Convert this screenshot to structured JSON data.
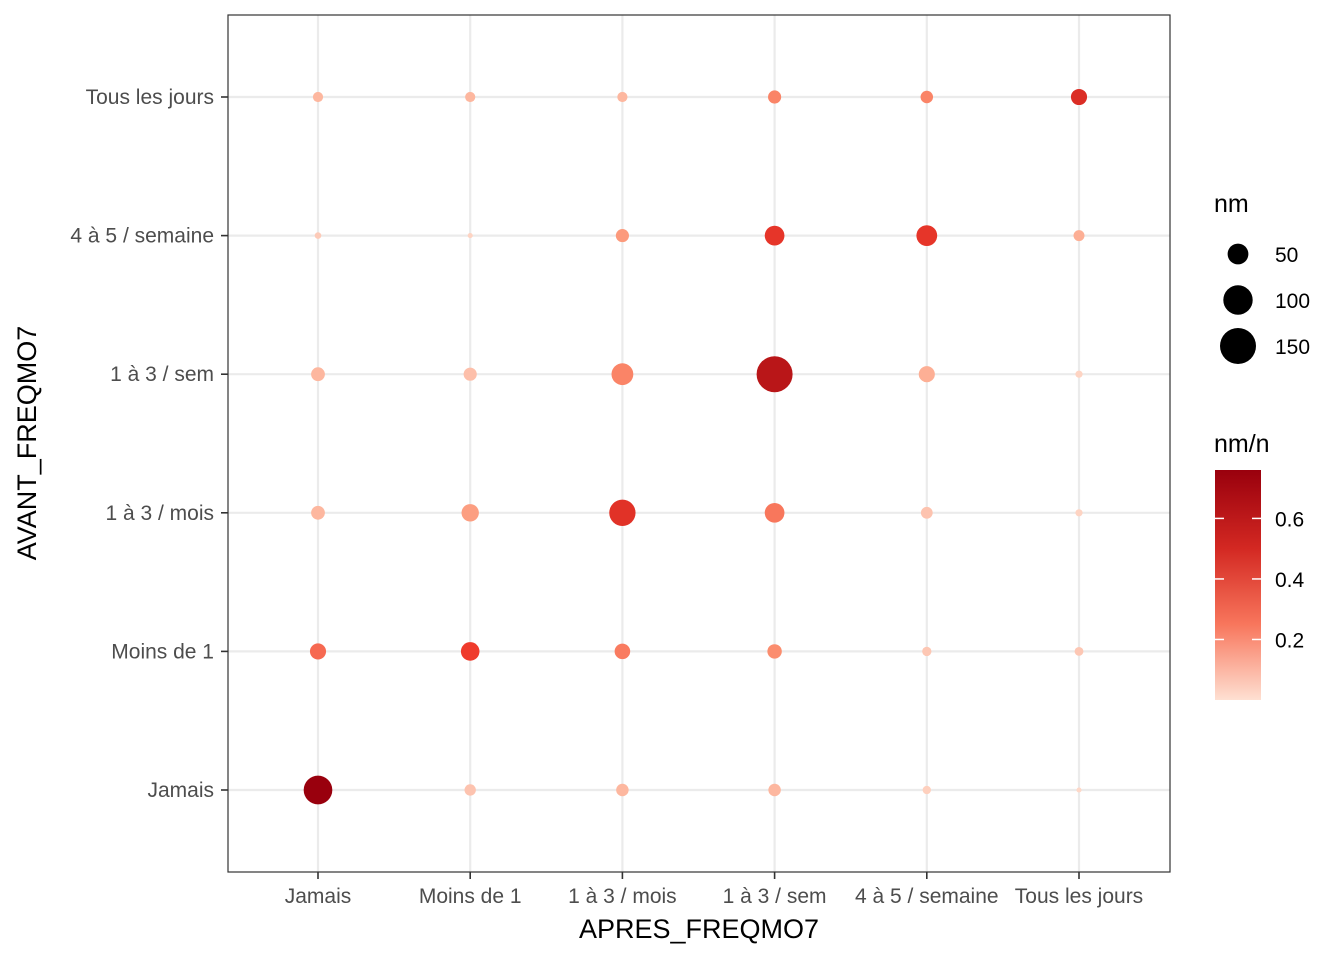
{
  "chart_data": {
    "type": "scatter",
    "xlabel": "APRES_FREQMO7",
    "ylabel": "AVANT_FREQMO7",
    "x_categories": [
      "Jamais",
      "Moins de 1",
      "1 à 3 / mois",
      "1 à 3 / sem",
      "4 à 5 / semaine",
      "Tous les jours"
    ],
    "y_categories": [
      "Jamais",
      "Moins de 1",
      "1 à 3 / mois",
      "1 à 3 / sem",
      "4 à 5 / semaine",
      "Tous les jours"
    ],
    "grid": true,
    "legend_position": "right",
    "size_legend": {
      "title": "nm",
      "breaks": [
        50,
        100,
        150
      ],
      "labels": [
        "50",
        "100",
        "150"
      ]
    },
    "color_legend": {
      "title": "nm/n",
      "breaks": [
        0.2,
        0.4,
        0.6
      ],
      "labels": [
        "0.2",
        "0.4",
        "0.6"
      ],
      "range": [
        0,
        0.76
      ],
      "low_color": "#fee0d2",
      "high_color": "#99000d"
    },
    "points": [
      {
        "x": "Jamais",
        "y": "Tous les jours",
        "nm": 12,
        "ratio": 0.1
      },
      {
        "x": "Moins de 1",
        "y": "Tous les jours",
        "nm": 12,
        "ratio": 0.1
      },
      {
        "x": "1 à 3 / mois",
        "y": "Tous les jours",
        "nm": 12,
        "ratio": 0.1
      },
      {
        "x": "1 à 3 / sem",
        "y": "Tous les jours",
        "nm": 20,
        "ratio": 0.22
      },
      {
        "x": "4 à 5 / semaine",
        "y": "Tous les jours",
        "nm": 18,
        "ratio": 0.22
      },
      {
        "x": "Tous les jours",
        "y": "Tous les jours",
        "nm": 30,
        "ratio": 0.47
      },
      {
        "x": "Jamais",
        "y": "4 à 5 / semaine",
        "nm": 5,
        "ratio": 0.05
      },
      {
        "x": "Moins de 1",
        "y": "4 à 5 / semaine",
        "nm": 3,
        "ratio": 0.03
      },
      {
        "x": "1 à 3 / mois",
        "y": "4 à 5 / semaine",
        "nm": 20,
        "ratio": 0.17
      },
      {
        "x": "1 à 3 / sem",
        "y": "4 à 5 / semaine",
        "nm": 45,
        "ratio": 0.42
      },
      {
        "x": "4 à 5 / semaine",
        "y": "4 à 5 / semaine",
        "nm": 50,
        "ratio": 0.42
      },
      {
        "x": "Tous les jours",
        "y": "4 à 5 / semaine",
        "nm": 14,
        "ratio": 0.12
      },
      {
        "x": "Jamais",
        "y": "1 à 3 / sem",
        "nm": 22,
        "ratio": 0.1
      },
      {
        "x": "Moins de 1",
        "y": "1 à 3 / sem",
        "nm": 20,
        "ratio": 0.08
      },
      {
        "x": "1 à 3 / mois",
        "y": "1 à 3 / sem",
        "nm": 55,
        "ratio": 0.22
      },
      {
        "x": "1 à 3 / sem",
        "y": "1 à 3 / sem",
        "nm": 150,
        "ratio": 0.62
      },
      {
        "x": "4 à 5 / semaine",
        "y": "1 à 3 / sem",
        "nm": 30,
        "ratio": 0.12
      },
      {
        "x": "Tous les jours",
        "y": "1 à 3 / sem",
        "nm": 6,
        "ratio": 0.03
      },
      {
        "x": "Jamais",
        "y": "1 à 3 / mois",
        "nm": 22,
        "ratio": 0.1
      },
      {
        "x": "Moins de 1",
        "y": "1 à 3 / mois",
        "nm": 35,
        "ratio": 0.16
      },
      {
        "x": "1 à 3 / mois",
        "y": "1 à 3 / mois",
        "nm": 80,
        "ratio": 0.44
      },
      {
        "x": "1 à 3 / sem",
        "y": "1 à 3 / mois",
        "nm": 45,
        "ratio": 0.25
      },
      {
        "x": "4 à 5 / semaine",
        "y": "1 à 3 / mois",
        "nm": 16,
        "ratio": 0.07
      },
      {
        "x": "Tous les jours",
        "y": "1 à 3 / mois",
        "nm": 6,
        "ratio": 0.03
      },
      {
        "x": "Jamais",
        "y": "Moins de 1",
        "nm": 30,
        "ratio": 0.28
      },
      {
        "x": "Moins de 1",
        "y": "Moins de 1",
        "nm": 40,
        "ratio": 0.38
      },
      {
        "x": "1 à 3 / mois",
        "y": "Moins de 1",
        "nm": 28,
        "ratio": 0.24
      },
      {
        "x": "1 à 3 / sem",
        "y": "Moins de 1",
        "nm": 24,
        "ratio": 0.2
      },
      {
        "x": "4 à 5 / semaine",
        "y": "Moins de 1",
        "nm": 10,
        "ratio": 0.06
      },
      {
        "x": "Tous les jours",
        "y": "Moins de 1",
        "nm": 9,
        "ratio": 0.06
      },
      {
        "x": "Jamais",
        "y": "Jamais",
        "nm": 95,
        "ratio": 0.76
      },
      {
        "x": "Moins de 1",
        "y": "Jamais",
        "nm": 15,
        "ratio": 0.07
      },
      {
        "x": "1 à 3 / mois",
        "y": "Jamais",
        "nm": 18,
        "ratio": 0.1
      },
      {
        "x": "1 à 3 / sem",
        "y": "Jamais",
        "nm": 18,
        "ratio": 0.1
      },
      {
        "x": "4 à 5 / semaine",
        "y": "Jamais",
        "nm": 8,
        "ratio": 0.04
      },
      {
        "x": "Tous les jours",
        "y": "Jamais",
        "nm": 3,
        "ratio": 0.02
      }
    ]
  }
}
